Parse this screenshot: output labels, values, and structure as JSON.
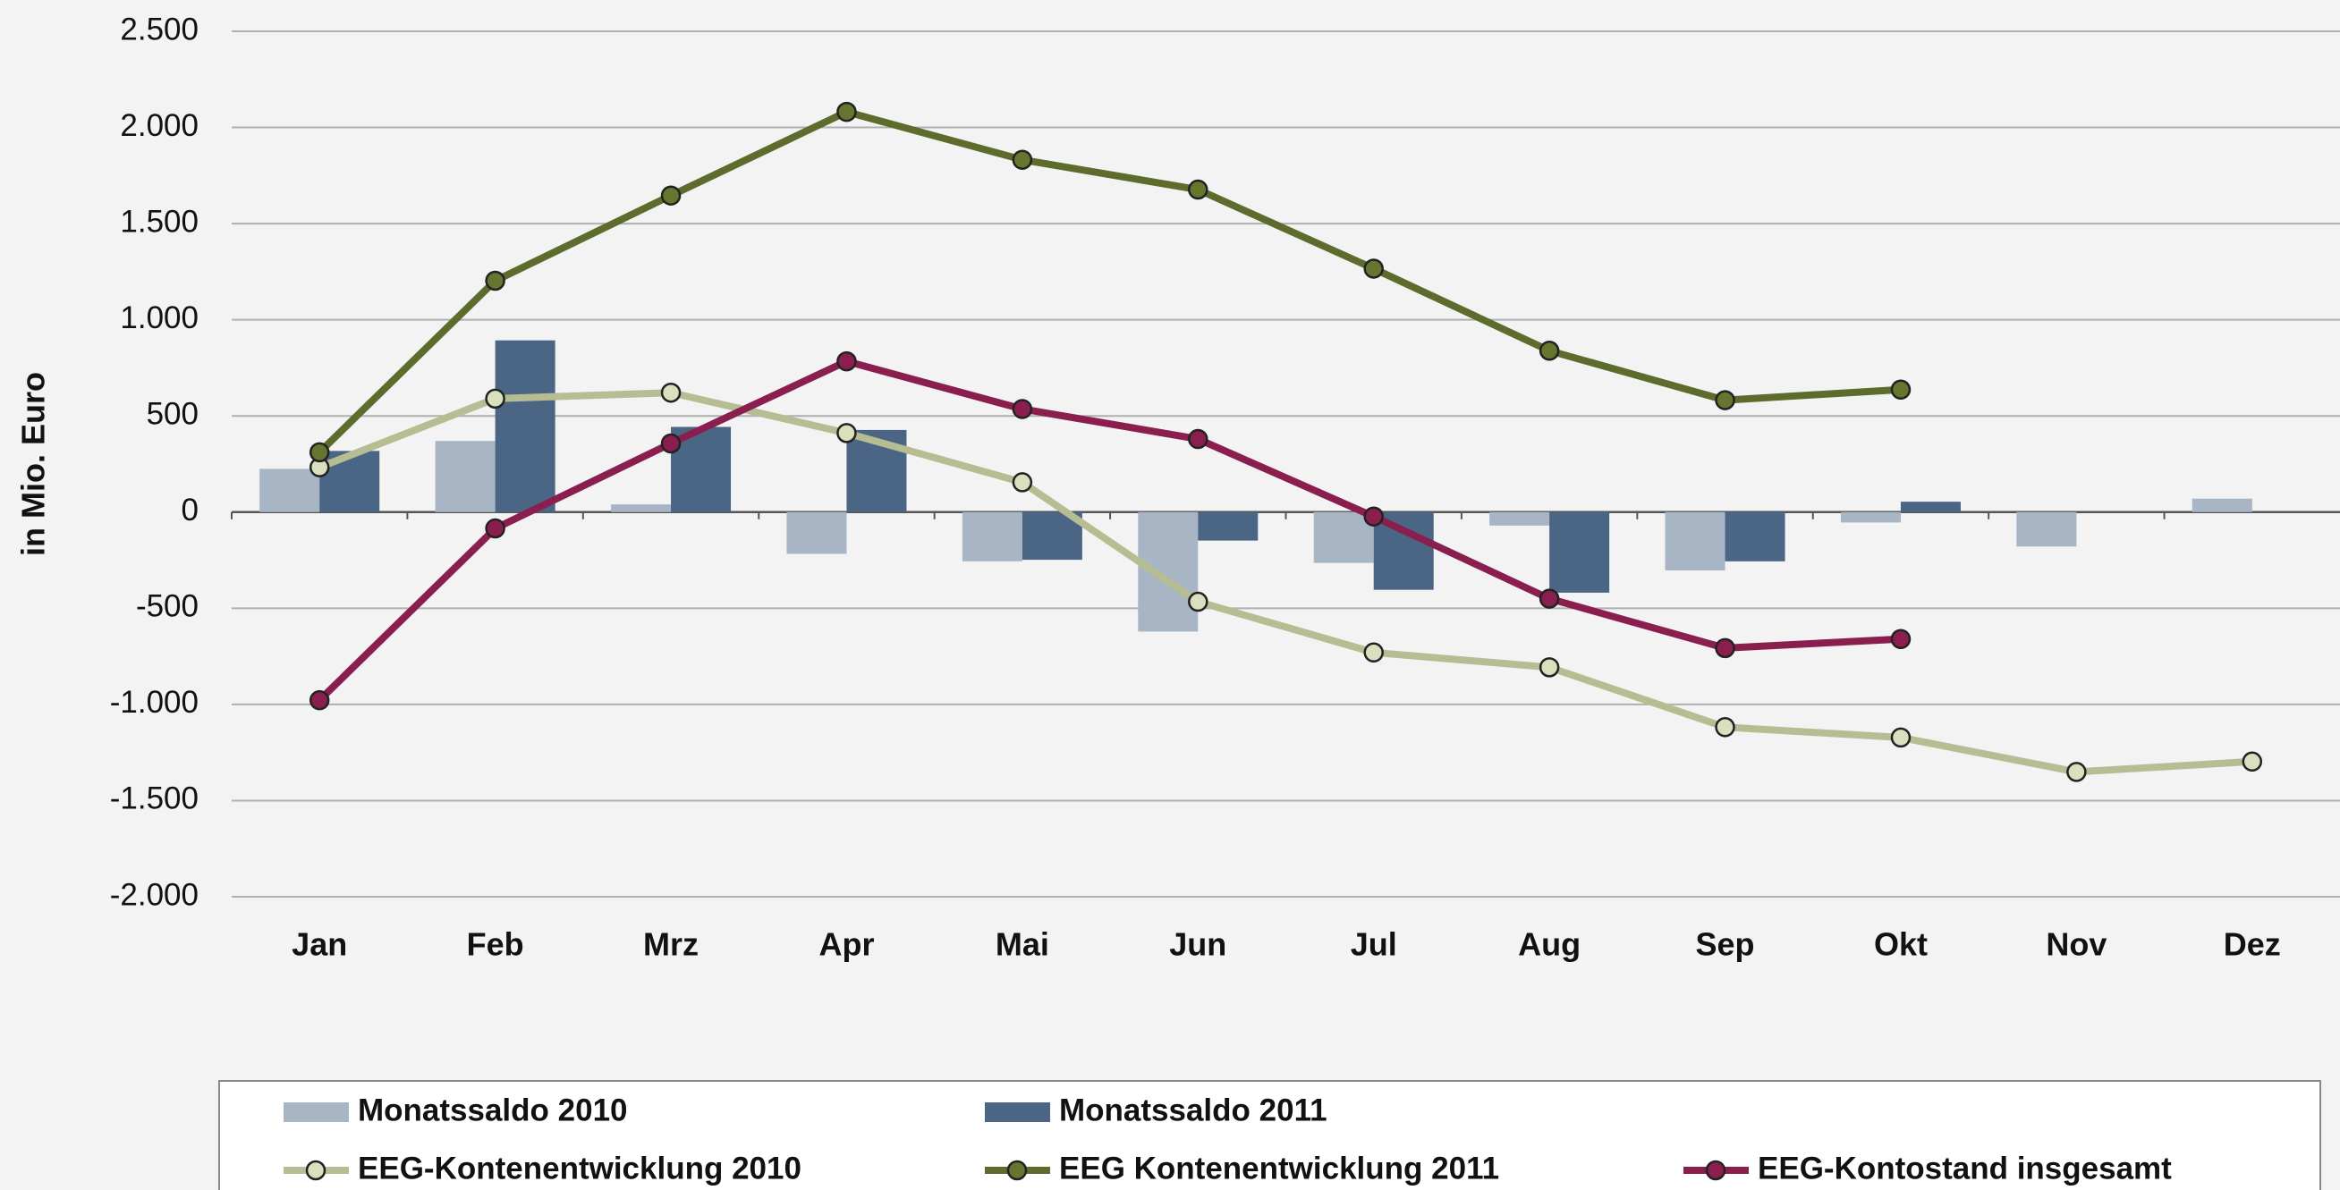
{
  "chart_data": {
    "type": "combo",
    "y_label": "in Mio. Euro",
    "categories": [
      "Jan",
      "Feb",
      "Mrz",
      "Apr",
      "Mai",
      "Jun",
      "Jul",
      "Aug",
      "Sep",
      "Okt",
      "Nov",
      "Dez"
    ],
    "series": [
      {
        "name": "Monatssaldo 2010",
        "type": "bar",
        "color": "#a7b5c5",
        "values": [
          225,
          370,
          40,
          -217,
          -256,
          -621,
          -264,
          -70,
          -303,
          -54,
          -179,
          70
        ]
      },
      {
        "name": "Monatssaldo 2011",
        "type": "bar",
        "color": "#4b6585",
        "values": [
          318,
          893,
          443,
          427,
          -248,
          -148,
          -404,
          -419,
          -256,
          54,
          null,
          null
        ]
      },
      {
        "name": "EEG-Kontenentwicklung 2010",
        "type": "line",
        "color": "#b7bd93",
        "marker_color": "#dadfbd",
        "values": [
          233,
          590,
          621,
          411,
          155,
          -466,
          -730,
          -807,
          -1118,
          -1172,
          -1351,
          -1297
        ]
      },
      {
        "name": "EEG Kontenentwicklung 2011",
        "type": "line",
        "color": "#5d6b2c",
        "marker_color": "#66762f",
        "values": [
          311,
          1203,
          1646,
          2081,
          1832,
          1677,
          1266,
          839,
          582,
          637,
          null,
          null
        ]
      },
      {
        "name": "EEG-Kontostand insgesamt",
        "type": "line",
        "color": "#8a1f4f",
        "marker_color": "#8a1f4f",
        "values": [
          -978,
          -85,
          357,
          784,
          536,
          380,
          -23,
          -450,
          -707,
          -660,
          null,
          null
        ]
      }
    ],
    "ylim": [
      -2000,
      2500
    ],
    "yticks": [
      {
        "value": -2000,
        "label": "-2.000"
      },
      {
        "value": -1500,
        "label": "-1.500"
      },
      {
        "value": -1000,
        "label": "-1.000"
      },
      -500,
      0,
      500,
      {
        "value": 1000,
        "label": "1.000"
      },
      {
        "value": 1500,
        "label": "1.500"
      },
      {
        "value": 2000,
        "label": "2.000"
      },
      {
        "value": 2500,
        "label": "2.500"
      }
    ],
    "grid": true
  }
}
